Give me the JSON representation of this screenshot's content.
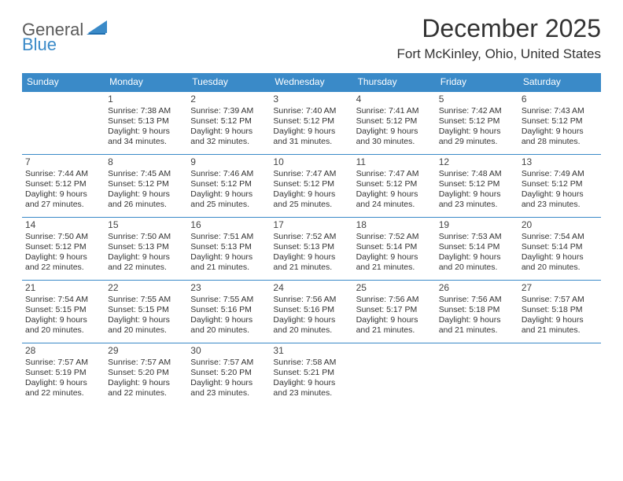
{
  "brand": {
    "part1": "General",
    "part2": "Blue"
  },
  "title": "December 2025",
  "location": "Fort McKinley, Ohio, United States",
  "colors": {
    "header_bg": "#3a8ac8",
    "header_text": "#ffffff",
    "border": "#3a8ac8",
    "text": "#333333",
    "logo_gray": "#5a5a5a",
    "logo_blue": "#3a8ac8"
  },
  "days_of_week": [
    "Sunday",
    "Monday",
    "Tuesday",
    "Wednesday",
    "Thursday",
    "Friday",
    "Saturday"
  ],
  "weeks": [
    [
      {
        "blank": true
      },
      {
        "n": "1",
        "sr": "Sunrise: 7:38 AM",
        "ss": "Sunset: 5:13 PM",
        "d1": "Daylight: 9 hours",
        "d2": "and 34 minutes."
      },
      {
        "n": "2",
        "sr": "Sunrise: 7:39 AM",
        "ss": "Sunset: 5:12 PM",
        "d1": "Daylight: 9 hours",
        "d2": "and 32 minutes."
      },
      {
        "n": "3",
        "sr": "Sunrise: 7:40 AM",
        "ss": "Sunset: 5:12 PM",
        "d1": "Daylight: 9 hours",
        "d2": "and 31 minutes."
      },
      {
        "n": "4",
        "sr": "Sunrise: 7:41 AM",
        "ss": "Sunset: 5:12 PM",
        "d1": "Daylight: 9 hours",
        "d2": "and 30 minutes."
      },
      {
        "n": "5",
        "sr": "Sunrise: 7:42 AM",
        "ss": "Sunset: 5:12 PM",
        "d1": "Daylight: 9 hours",
        "d2": "and 29 minutes."
      },
      {
        "n": "6",
        "sr": "Sunrise: 7:43 AM",
        "ss": "Sunset: 5:12 PM",
        "d1": "Daylight: 9 hours",
        "d2": "and 28 minutes."
      }
    ],
    [
      {
        "n": "7",
        "sr": "Sunrise: 7:44 AM",
        "ss": "Sunset: 5:12 PM",
        "d1": "Daylight: 9 hours",
        "d2": "and 27 minutes."
      },
      {
        "n": "8",
        "sr": "Sunrise: 7:45 AM",
        "ss": "Sunset: 5:12 PM",
        "d1": "Daylight: 9 hours",
        "d2": "and 26 minutes."
      },
      {
        "n": "9",
        "sr": "Sunrise: 7:46 AM",
        "ss": "Sunset: 5:12 PM",
        "d1": "Daylight: 9 hours",
        "d2": "and 25 minutes."
      },
      {
        "n": "10",
        "sr": "Sunrise: 7:47 AM",
        "ss": "Sunset: 5:12 PM",
        "d1": "Daylight: 9 hours",
        "d2": "and 25 minutes."
      },
      {
        "n": "11",
        "sr": "Sunrise: 7:47 AM",
        "ss": "Sunset: 5:12 PM",
        "d1": "Daylight: 9 hours",
        "d2": "and 24 minutes."
      },
      {
        "n": "12",
        "sr": "Sunrise: 7:48 AM",
        "ss": "Sunset: 5:12 PM",
        "d1": "Daylight: 9 hours",
        "d2": "and 23 minutes."
      },
      {
        "n": "13",
        "sr": "Sunrise: 7:49 AM",
        "ss": "Sunset: 5:12 PM",
        "d1": "Daylight: 9 hours",
        "d2": "and 23 minutes."
      }
    ],
    [
      {
        "n": "14",
        "sr": "Sunrise: 7:50 AM",
        "ss": "Sunset: 5:12 PM",
        "d1": "Daylight: 9 hours",
        "d2": "and 22 minutes."
      },
      {
        "n": "15",
        "sr": "Sunrise: 7:50 AM",
        "ss": "Sunset: 5:13 PM",
        "d1": "Daylight: 9 hours",
        "d2": "and 22 minutes."
      },
      {
        "n": "16",
        "sr": "Sunrise: 7:51 AM",
        "ss": "Sunset: 5:13 PM",
        "d1": "Daylight: 9 hours",
        "d2": "and 21 minutes."
      },
      {
        "n": "17",
        "sr": "Sunrise: 7:52 AM",
        "ss": "Sunset: 5:13 PM",
        "d1": "Daylight: 9 hours",
        "d2": "and 21 minutes."
      },
      {
        "n": "18",
        "sr": "Sunrise: 7:52 AM",
        "ss": "Sunset: 5:14 PM",
        "d1": "Daylight: 9 hours",
        "d2": "and 21 minutes."
      },
      {
        "n": "19",
        "sr": "Sunrise: 7:53 AM",
        "ss": "Sunset: 5:14 PM",
        "d1": "Daylight: 9 hours",
        "d2": "and 20 minutes."
      },
      {
        "n": "20",
        "sr": "Sunrise: 7:54 AM",
        "ss": "Sunset: 5:14 PM",
        "d1": "Daylight: 9 hours",
        "d2": "and 20 minutes."
      }
    ],
    [
      {
        "n": "21",
        "sr": "Sunrise: 7:54 AM",
        "ss": "Sunset: 5:15 PM",
        "d1": "Daylight: 9 hours",
        "d2": "and 20 minutes."
      },
      {
        "n": "22",
        "sr": "Sunrise: 7:55 AM",
        "ss": "Sunset: 5:15 PM",
        "d1": "Daylight: 9 hours",
        "d2": "and 20 minutes."
      },
      {
        "n": "23",
        "sr": "Sunrise: 7:55 AM",
        "ss": "Sunset: 5:16 PM",
        "d1": "Daylight: 9 hours",
        "d2": "and 20 minutes."
      },
      {
        "n": "24",
        "sr": "Sunrise: 7:56 AM",
        "ss": "Sunset: 5:16 PM",
        "d1": "Daylight: 9 hours",
        "d2": "and 20 minutes."
      },
      {
        "n": "25",
        "sr": "Sunrise: 7:56 AM",
        "ss": "Sunset: 5:17 PM",
        "d1": "Daylight: 9 hours",
        "d2": "and 21 minutes."
      },
      {
        "n": "26",
        "sr": "Sunrise: 7:56 AM",
        "ss": "Sunset: 5:18 PM",
        "d1": "Daylight: 9 hours",
        "d2": "and 21 minutes."
      },
      {
        "n": "27",
        "sr": "Sunrise: 7:57 AM",
        "ss": "Sunset: 5:18 PM",
        "d1": "Daylight: 9 hours",
        "d2": "and 21 minutes."
      }
    ],
    [
      {
        "n": "28",
        "sr": "Sunrise: 7:57 AM",
        "ss": "Sunset: 5:19 PM",
        "d1": "Daylight: 9 hours",
        "d2": "and 22 minutes."
      },
      {
        "n": "29",
        "sr": "Sunrise: 7:57 AM",
        "ss": "Sunset: 5:20 PM",
        "d1": "Daylight: 9 hours",
        "d2": "and 22 minutes."
      },
      {
        "n": "30",
        "sr": "Sunrise: 7:57 AM",
        "ss": "Sunset: 5:20 PM",
        "d1": "Daylight: 9 hours",
        "d2": "and 23 minutes."
      },
      {
        "n": "31",
        "sr": "Sunrise: 7:58 AM",
        "ss": "Sunset: 5:21 PM",
        "d1": "Daylight: 9 hours",
        "d2": "and 23 minutes."
      },
      {
        "blank": true
      },
      {
        "blank": true
      },
      {
        "blank": true
      }
    ]
  ]
}
